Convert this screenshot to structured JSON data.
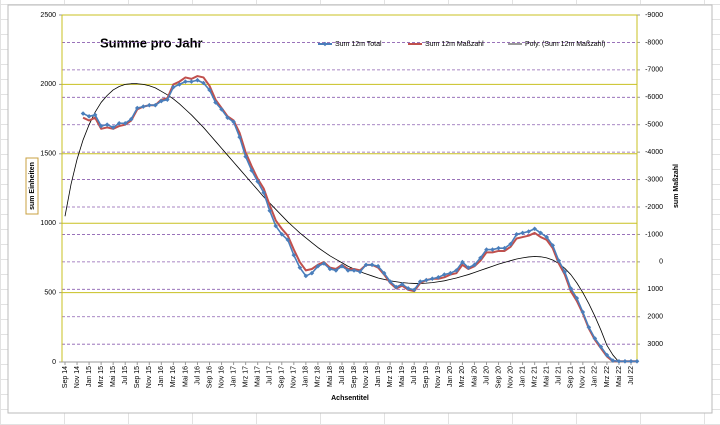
{
  "chart_data": {
    "type": "line",
    "title": "Summe pro Jahr",
    "x_label": "Achsentitel",
    "y_label": "sum Einheiten",
    "y2_label": "sum Maßzahl",
    "categories": [
      "Sep 14",
      null,
      "Nov 14",
      null,
      "Jan 15",
      null,
      "Mrz 15",
      null,
      "Mai 15",
      null,
      "Jul 15",
      null,
      "Sep 15",
      null,
      "Nov 15",
      null,
      "Jan 16",
      null,
      "Mrz 16",
      null,
      "Mai 16",
      null,
      "Jul 16",
      null,
      "Sep 16",
      null,
      "Nov 16",
      null,
      "Jan 17",
      null,
      "Mrz 17",
      null,
      "Mai 17",
      null,
      "Jul 17",
      null,
      "Sep 17",
      null,
      "Nov 17",
      null,
      "Jan 18",
      null,
      "Mrz 18",
      null,
      "Mai 18",
      null,
      "Jul 18",
      null,
      "Sep 18",
      null,
      "Nov 18",
      null,
      "Jan 19",
      null,
      "Mrz 19",
      null,
      "Mai 19",
      null,
      "Jul 19",
      null,
      "Sep 19",
      null,
      "Nov 19",
      null,
      "Jan 20",
      null,
      "Mrz 20",
      null,
      "Mai 20",
      null,
      "Jul 20",
      null,
      "Sep 20",
      null,
      "Nov 20",
      null,
      "Jan 21",
      null,
      "Mrz 21",
      null,
      "Mai 21",
      null,
      "Jul 21",
      null,
      "Sep 21",
      null,
      "Nov 21",
      null,
      "Jan 22",
      null,
      "Mrz 22",
      null,
      "Mai 22",
      null,
      "Jul 22",
      null
    ],
    "series": [
      {
        "name": "Sum 12m Total",
        "color": "#4a7ebb",
        "marker": "diamond",
        "values": [
          null,
          null,
          null,
          1790,
          1770,
          1780,
          1700,
          1710,
          1690,
          1720,
          1720,
          1750,
          1830,
          1840,
          1850,
          1850,
          1880,
          1890,
          1980,
          2000,
          2020,
          2020,
          2030,
          2010,
          1960,
          1870,
          1820,
          1760,
          1730,
          1620,
          1480,
          1380,
          1300,
          1220,
          1090,
          980,
          920,
          880,
          770,
          680,
          620,
          640,
          690,
          710,
          670,
          660,
          690,
          660,
          660,
          650,
          700,
          700,
          690,
          640,
          580,
          540,
          560,
          530,
          520,
          580,
          590,
          600,
          610,
          630,
          640,
          660,
          720,
          680,
          700,
          750,
          810,
          810,
          820,
          820,
          850,
          920,
          930,
          940,
          960,
          930,
          900,
          840,
          730,
          650,
          530,
          460,
          360,
          250,
          170,
          110,
          50,
          10,
          5,
          5,
          5,
          5
        ]
      },
      {
        "name": "Sum 12m Maßzahl",
        "color": "#c0504d",
        "values": [
          null,
          null,
          null,
          1760,
          1740,
          1760,
          1680,
          1690,
          1680,
          1700,
          1710,
          1740,
          1820,
          1840,
          1850,
          1850,
          1890,
          1900,
          2000,
          2020,
          2050,
          2040,
          2060,
          2050,
          1990,
          1890,
          1830,
          1770,
          1740,
          1650,
          1510,
          1410,
          1320,
          1250,
          1130,
          1020,
          960,
          910,
          810,
          720,
          660,
          670,
          700,
          720,
          680,
          670,
          700,
          670,
          670,
          660,
          700,
          700,
          680,
          630,
          570,
          530,
          550,
          520,
          510,
          570,
          590,
          600,
          600,
          610,
          630,
          640,
          700,
          670,
          690,
          730,
          790,
          790,
          800,
          800,
          830,
          890,
          900,
          910,
          930,
          900,
          880,
          820,
          710,
          630,
          510,
          440,
          350,
          240,
          160,
          100,
          40,
          5,
          5,
          5,
          5,
          5
        ]
      },
      {
        "name": "Poly. (Sum 12m Maßzahl)",
        "color": "#000000",
        "values": [
          1050,
          1280,
          1460,
          1600,
          1710,
          1800,
          1870,
          1920,
          1960,
          1985,
          2000,
          2005,
          2005,
          2000,
          1990,
          1975,
          1950,
          1925,
          1895,
          1860,
          1820,
          1780,
          1735,
          1690,
          1640,
          1590,
          1540,
          1490,
          1440,
          1390,
          1340,
          1290,
          1240,
          1190,
          1145,
          1100,
          1055,
          1010,
          970,
          930,
          895,
          860,
          825,
          795,
          765,
          740,
          715,
          690,
          670,
          650,
          635,
          620,
          605,
          595,
          585,
          578,
          572,
          568,
          566,
          566,
          568,
          572,
          578,
          585,
          595,
          605,
          618,
          630,
          645,
          660,
          675,
          690,
          705,
          718,
          730,
          742,
          750,
          757,
          760,
          758,
          750,
          735,
          710,
          675,
          630,
          570,
          500,
          420,
          330,
          230,
          120,
          50,
          0,
          null,
          null,
          null
        ]
      }
    ],
    "ylim": [
      0,
      2500
    ],
    "yticks": [
      0,
      500,
      1000,
      1500,
      2000,
      2500
    ],
    "y2lim": [
      -3650,
      9000
    ],
    "y2ticks": [
      {
        "value": 9000,
        "label": "-9000"
      },
      {
        "value": 8000,
        "label": "-8000"
      },
      {
        "value": 7000,
        "label": "-7000"
      },
      {
        "value": 6000,
        "label": "-6000"
      },
      {
        "value": 5000,
        "label": "-5000"
      },
      {
        "value": 4000,
        "label": "-4000"
      },
      {
        "value": 3000,
        "label": "-3000"
      },
      {
        "value": 2000,
        "label": "-2000"
      },
      {
        "value": 1000,
        "label": "-1000"
      },
      0,
      {
        "value": -1000,
        "label": "1000"
      },
      {
        "value": -2000,
        "label": "2000"
      },
      {
        "value": -3000,
        "label": "3000"
      }
    ],
    "grid": true,
    "legend": "top right"
  }
}
